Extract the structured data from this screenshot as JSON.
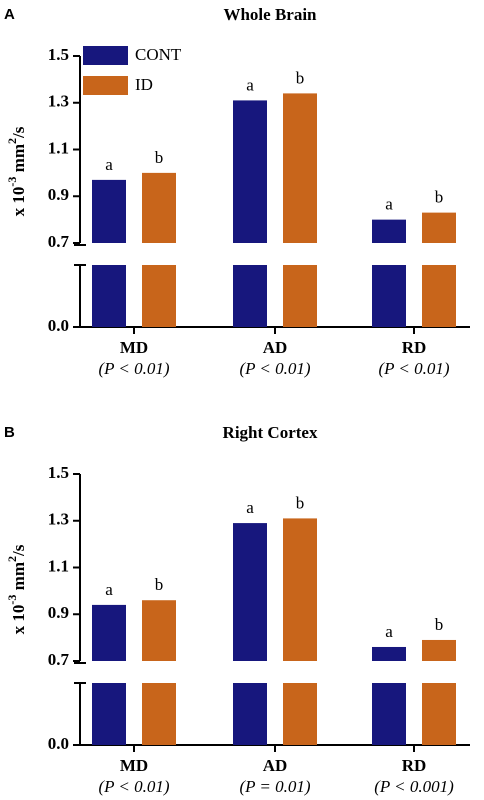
{
  "chart_data": [
    {
      "type": "bar",
      "panel": "A",
      "title": "Whole Brain",
      "ylabel": [
        "x 10",
        "-3",
        " mm",
        "2",
        "/s"
      ],
      "categories": [
        "MD",
        "AD",
        "RD"
      ],
      "subcategories": [
        "(P < 0.01)",
        "(P < 0.01)",
        "(P < 0.01)"
      ],
      "series": [
        {
          "name": "CONT",
          "color": "#17177d",
          "values": [
            0.97,
            1.31,
            0.8
          ],
          "labels": [
            "a",
            "a",
            "a"
          ]
        },
        {
          "name": "ID",
          "color": "#c8651b",
          "values": [
            1.0,
            1.34,
            0.83
          ],
          "labels": [
            "b",
            "b",
            "b"
          ]
        }
      ],
      "ylim": [
        0.7,
        1.5
      ],
      "yticks": [
        0.7,
        0.9,
        1.1,
        1.3,
        1.5
      ],
      "ylim_lower": [
        0,
        0.25
      ],
      "yticks_lower": [
        {
          "value": 0,
          "label": "0.0"
        }
      ],
      "legend": "top-left"
    },
    {
      "type": "bar",
      "panel": "B",
      "title": "Right Cortex",
      "ylabel": [
        "x 10",
        "-3",
        " mm",
        "2",
        "/s"
      ],
      "categories": [
        "MD",
        "AD",
        "RD"
      ],
      "subcategories": [
        "(P < 0.01)",
        "(P = 0.01)",
        "(P < 0.001)"
      ],
      "series": [
        {
          "name": "CONT",
          "color": "#17177d",
          "values": [
            0.94,
            1.29,
            0.76
          ],
          "labels": [
            "a",
            "a",
            "a"
          ]
        },
        {
          "name": "ID",
          "color": "#c8651b",
          "values": [
            0.96,
            1.31,
            0.79
          ],
          "labels": [
            "b",
            "b",
            "b"
          ]
        }
      ],
      "ylim": [
        0.7,
        1.5
      ],
      "yticks": [
        0.7,
        0.9,
        1.1,
        1.3,
        1.5
      ],
      "ylim_lower": [
        0,
        0.25
      ],
      "yticks_lower": [
        {
          "value": 0,
          "label": "0.0"
        }
      ]
    }
  ]
}
